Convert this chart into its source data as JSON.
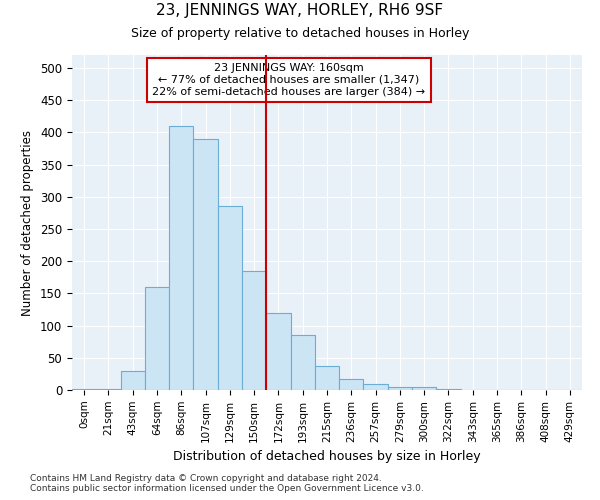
{
  "title": "23, JENNINGS WAY, HORLEY, RH6 9SF",
  "subtitle": "Size of property relative to detached houses in Horley",
  "xlabel": "Distribution of detached houses by size in Horley",
  "ylabel": "Number of detached properties",
  "bar_labels": [
    "0sqm",
    "21sqm",
    "43sqm",
    "64sqm",
    "86sqm",
    "107sqm",
    "129sqm",
    "150sqm",
    "172sqm",
    "193sqm",
    "215sqm",
    "236sqm",
    "257sqm",
    "279sqm",
    "300sqm",
    "322sqm",
    "343sqm",
    "365sqm",
    "386sqm",
    "408sqm",
    "429sqm"
  ],
  "bar_values": [
    2,
    2,
    30,
    160,
    410,
    390,
    285,
    185,
    120,
    85,
    38,
    17,
    10,
    5,
    5,
    1,
    0,
    0,
    0,
    0,
    0
  ],
  "bar_color": "#cce5f5",
  "bar_edge_color": "#6aaed6",
  "vline_color": "#cc0000",
  "annotation_line1": "23 JENNINGS WAY: 160sqm",
  "annotation_line2": "← 77% of detached houses are smaller (1,347)",
  "annotation_line3": "22% of semi-detached houses are larger (384) →",
  "annotation_box_edge": "#cc0000",
  "ylim": [
    0,
    520
  ],
  "yticks": [
    0,
    50,
    100,
    150,
    200,
    250,
    300,
    350,
    400,
    450,
    500
  ],
  "footnote1": "Contains HM Land Registry data © Crown copyright and database right 2024.",
  "footnote2": "Contains public sector information licensed under the Open Government Licence v3.0.",
  "plot_bg_color": "#e8f0f8"
}
